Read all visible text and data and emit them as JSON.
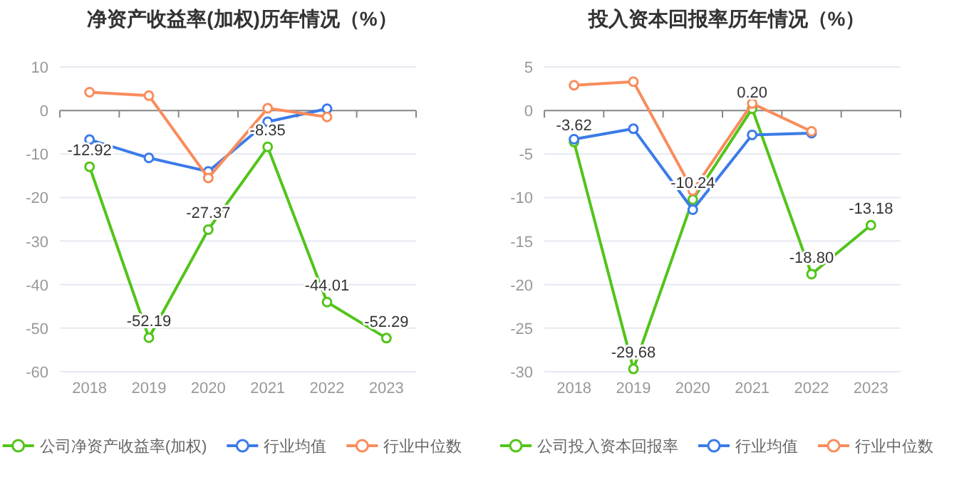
{
  "chart_data": [
    {
      "type": "line",
      "title": "净资产收益率(加权)历年情况（%）",
      "categories": [
        "2018",
        "2019",
        "2020",
        "2021",
        "2022",
        "2023"
      ],
      "ylim": [
        -60,
        10
      ],
      "yticks": [
        -60,
        -50,
        -40,
        -30,
        -20,
        -10,
        0,
        10
      ],
      "grid": "y",
      "legend": "bottom",
      "marker": "circle",
      "series": [
        {
          "name": "公司净资产收益率(加权)",
          "color": "#52c41a",
          "values": [
            -12.92,
            -52.19,
            -27.37,
            -8.35,
            -44.01,
            -52.29
          ],
          "value_labels": [
            "-12.92",
            "-52.19",
            "-27.37",
            "-8.35",
            "-44.01",
            "-52.29"
          ]
        },
        {
          "name": "行业均值",
          "color": "#3b7be8",
          "values": [
            -6.7,
            -10.9,
            -14.0,
            -2.6,
            0.4,
            null
          ]
        },
        {
          "name": "行业中位数",
          "color": "#f98c5c",
          "values": [
            4.2,
            3.4,
            -15.5,
            0.5,
            -1.5,
            null
          ]
        }
      ]
    },
    {
      "type": "line",
      "title": "投入资本回报率历年情况（%）",
      "categories": [
        "2018",
        "2019",
        "2020",
        "2021",
        "2022",
        "2023"
      ],
      "ylim": [
        -30,
        5
      ],
      "yticks": [
        -30,
        -25,
        -20,
        -15,
        -10,
        -5,
        0,
        5
      ],
      "grid": "y",
      "legend": "bottom",
      "marker": "circle",
      "series": [
        {
          "name": "公司投入资本回报率",
          "color": "#52c41a",
          "values": [
            -3.62,
            -29.68,
            -10.24,
            0.2,
            -18.8,
            -13.18
          ],
          "value_labels": [
            "-3.62",
            "-29.68",
            "-10.24",
            "0.20",
            "-18.80",
            "-13.18"
          ]
        },
        {
          "name": "行业均值",
          "color": "#3b7be8",
          "values": [
            -3.3,
            -2.1,
            -11.4,
            -2.8,
            -2.6,
            null
          ]
        },
        {
          "name": "行业中位数",
          "color": "#f98c5c",
          "values": [
            2.9,
            3.3,
            -9.2,
            0.8,
            -2.4,
            null
          ]
        }
      ]
    }
  ]
}
